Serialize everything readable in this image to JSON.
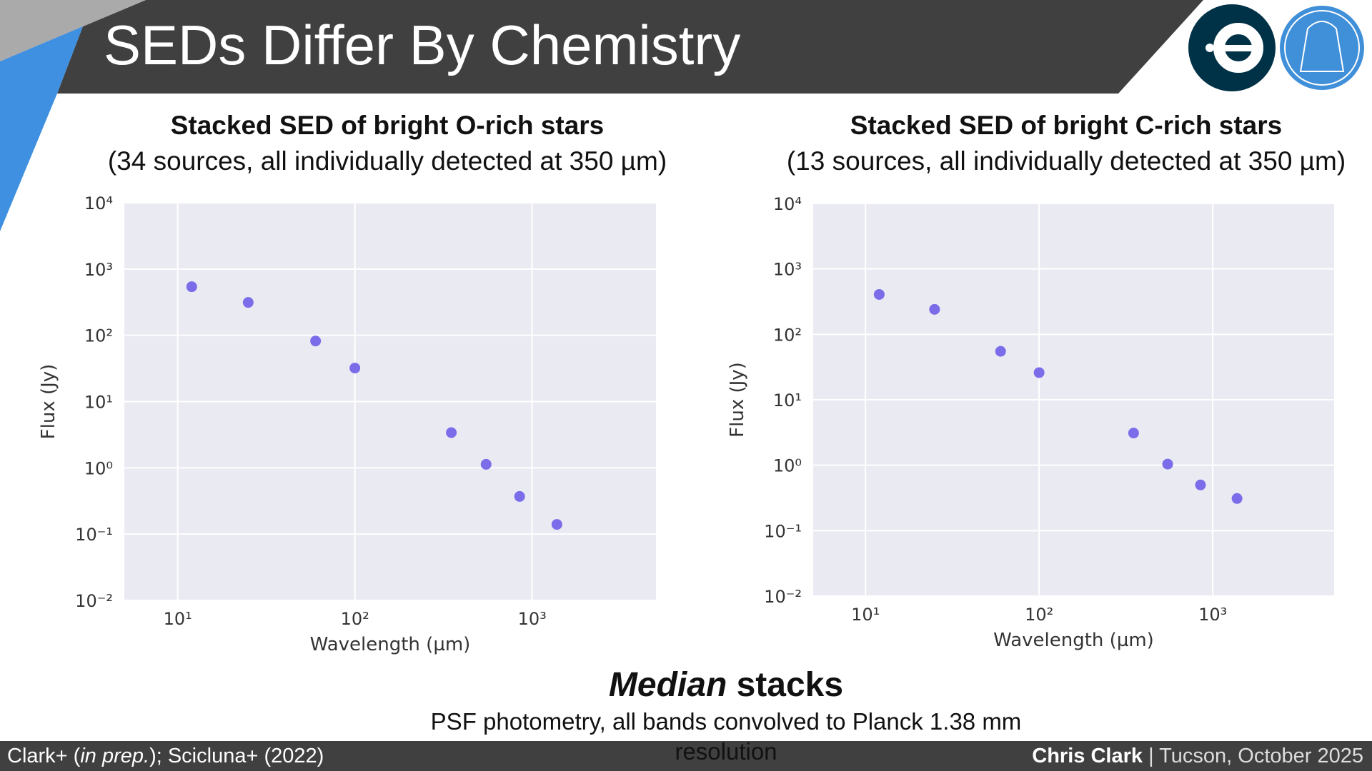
{
  "slide": {
    "title": "SEDs Differ By Chemistry",
    "caption_heading": [
      "Median",
      "stacks"
    ],
    "caption_text": "PSF photometry, all bands convolved to Planck 1.38 mm resolution",
    "footer_left": [
      "Clark+ (",
      "in prep.",
      "); Scicluna+ (2022)"
    ],
    "footer_right": [
      "Chris Clark",
      "| Tucson, October 2025"
    ]
  },
  "chart_data": [
    {
      "type": "scatter",
      "title": "Stacked SED of bright O-rich stars",
      "subtitle": "(34 sources, all individually detected at 350 µm)",
      "xlabel": "Wavelength (µm)",
      "ylabel": "Flux (Jy)",
      "xscale": "log",
      "yscale": "log",
      "grid": true,
      "xlim": [
        5,
        5000
      ],
      "ylim": [
        0.01,
        10000
      ],
      "xticks": [
        {
          "value": 10,
          "label": "10¹"
        },
        {
          "value": 100,
          "label": "10²"
        },
        {
          "value": 1000,
          "label": "10³"
        }
      ],
      "yticks": [
        {
          "value": 0.01,
          "label": "10⁻²"
        },
        {
          "value": 0.1,
          "label": "10⁻¹"
        },
        {
          "value": 1,
          "label": "10⁰"
        },
        {
          "value": 10,
          "label": "10¹"
        },
        {
          "value": 100,
          "label": "10²"
        },
        {
          "value": 1000,
          "label": "10³"
        },
        {
          "value": 10000,
          "label": "10⁴"
        }
      ],
      "x": [
        12,
        25,
        60,
        100,
        350,
        550,
        850,
        1380
      ],
      "values": [
        540,
        313,
        82,
        32,
        3.4,
        1.13,
        0.37,
        0.14
      ],
      "color": "#7b6cea"
    },
    {
      "type": "scatter",
      "title": "Stacked SED of bright C-rich stars",
      "subtitle": "(13 sources, all individually detected at 350 µm)",
      "xlabel": "Wavelength (µm)",
      "ylabel": "Flux (Jy)",
      "xscale": "log",
      "yscale": "log",
      "grid": true,
      "xlim": [
        5,
        5000
      ],
      "ylim": [
        0.01,
        10000
      ],
      "xticks": [
        {
          "value": 10,
          "label": "10¹"
        },
        {
          "value": 100,
          "label": "10²"
        },
        {
          "value": 1000,
          "label": "10³"
        }
      ],
      "yticks": [
        {
          "value": 0.01,
          "label": "10⁻²"
        },
        {
          "value": 0.1,
          "label": "10⁻¹"
        },
        {
          "value": 1,
          "label": "10⁰"
        },
        {
          "value": 10,
          "label": "10¹"
        },
        {
          "value": 100,
          "label": "10²"
        },
        {
          "value": 1000,
          "label": "10³"
        },
        {
          "value": 10000,
          "label": "10⁴"
        }
      ],
      "x": [
        12,
        25,
        60,
        100,
        350,
        550,
        850,
        1380
      ],
      "values": [
        407,
        241,
        55,
        26,
        3.1,
        1.04,
        0.5,
        0.31
      ],
      "color": "#7b6cea"
    }
  ]
}
